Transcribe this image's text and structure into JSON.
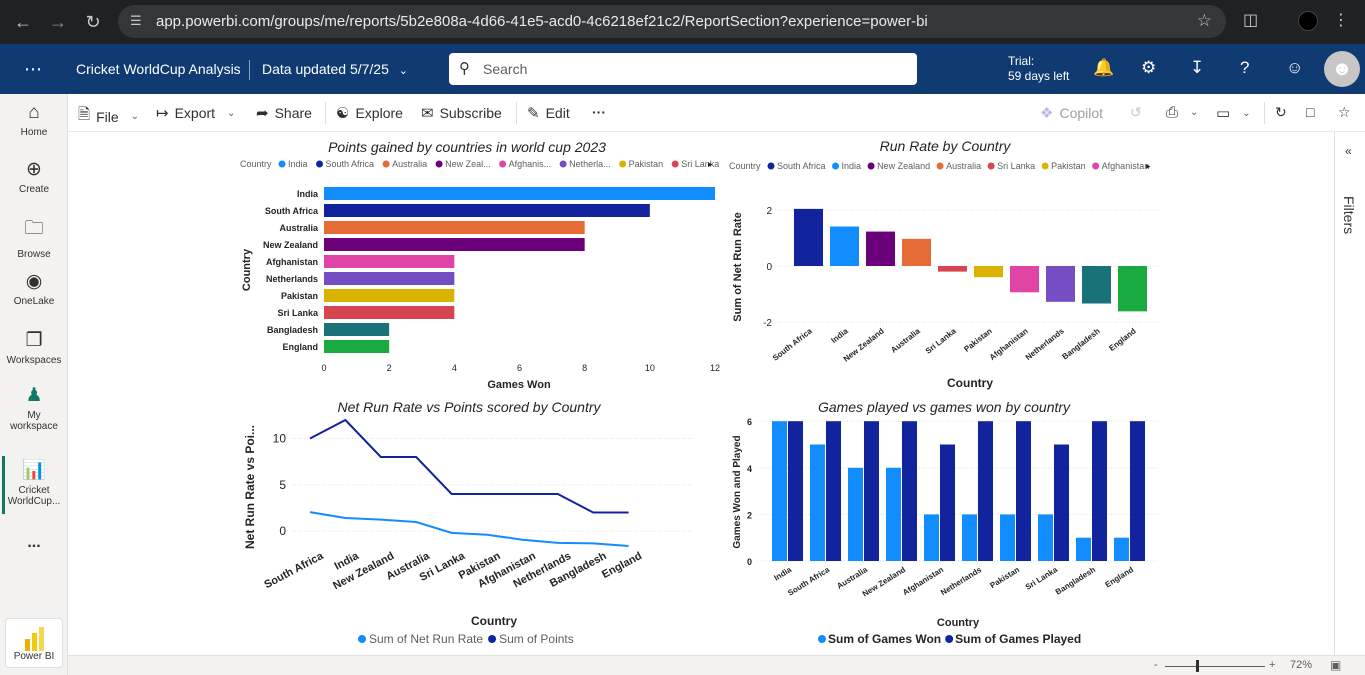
{
  "browser": {
    "url": "app.powerbi.com/groups/me/reports/5b2e808a-4d66-41e5-acd0-4c6218ef21c2/ReportSection?experience=power-bi"
  },
  "header": {
    "report_title": "Cricket WorldCup Analysis",
    "data_updated": "Data updated 5/7/25",
    "search_placeholder": "Search",
    "trial_line1": "Trial:",
    "trial_line2": "59 days left"
  },
  "rail": {
    "home": "Home",
    "create": "Create",
    "browse": "Browse",
    "onelake": "OneLake",
    "workspaces": "Workspaces",
    "my_workspace_1": "My",
    "my_workspace_2": "workspace",
    "cricket_1": "Cricket",
    "cricket_2": "WorldCup...",
    "more": "...",
    "powerbi": "Power BI"
  },
  "toolbar": {
    "file": "File",
    "export": "Export",
    "share": "Share",
    "explore": "Explore",
    "subscribe": "Subscribe",
    "edit": "Edit",
    "copilot": "Copilot"
  },
  "filters_label": "Filters",
  "status": {
    "zoom": "72%",
    "minus": "-",
    "plus": "+"
  },
  "colors": {
    "India": "#118dff",
    "South Africa": "#12239e",
    "Australia": "#e66c37",
    "New Zealand": "#6b007b",
    "Afghanistan": "#e044a7",
    "Netherlands": "#744ec2",
    "Pakistan": "#d9b300",
    "Sri Lanka": "#d64550",
    "Bangladesh": "#197278",
    "England": "#1aab40"
  },
  "chart_data": [
    {
      "type": "bar",
      "orientation": "horizontal",
      "title": "Points gained by countries in world cup 2023",
      "legend_title": "Country",
      "legend": [
        "India",
        "South Africa",
        "Australia",
        "New Zeal...",
        "Afghanis...",
        "Netherla...",
        "Pakistan",
        "Sri Lanka"
      ],
      "categories": [
        "India",
        "South Africa",
        "Australia",
        "New Zealand",
        "Afghanistan",
        "Netherlands",
        "Pakistan",
        "Sri Lanka",
        "Bangladesh",
        "England"
      ],
      "values": [
        12,
        10,
        8,
        8,
        4,
        4,
        4,
        4,
        2,
        2
      ],
      "xlabel": "Games Won",
      "ylabel": "Country",
      "xticks": [
        "0",
        "2",
        "4",
        "6",
        "8",
        "10",
        "12"
      ],
      "xlim": [
        0,
        12
      ]
    },
    {
      "type": "bar",
      "title": "Run Rate by Country",
      "legend_title": "Country",
      "legend": [
        "South Africa",
        "India",
        "New Zealand",
        "Australia",
        "Sri Lanka",
        "Pakistan",
        "Afghanistan"
      ],
      "categories": [
        "South Africa",
        "India",
        "New Zealand",
        "Australia",
        "Sri Lanka",
        "Pakistan",
        "Afghanistan",
        "Netherlands",
        "Bangladesh",
        "England"
      ],
      "values": [
        2.04,
        1.41,
        1.23,
        0.97,
        -0.2,
        -0.4,
        -0.94,
        -1.28,
        -1.34,
        -1.62
      ],
      "xlabel": "Country",
      "ylabel": "Sum of Net Run Rate",
      "yticks": [
        "2",
        "0",
        "-2"
      ],
      "ylim": [
        -2,
        2
      ]
    },
    {
      "type": "line",
      "title": "Net Run Rate vs Points scored by Country",
      "categories": [
        "South Africa",
        "India",
        "New Zealand",
        "Australia",
        "Sri Lanka",
        "Pakistan",
        "Afghanistan",
        "Netherlands",
        "Bangladesh",
        "England"
      ],
      "series": [
        {
          "name": "Sum of Net Run Rate",
          "values": [
            2.04,
            1.41,
            1.23,
            0.97,
            -0.2,
            -0.4,
            -0.94,
            -1.28,
            -1.34,
            -1.62
          ]
        },
        {
          "name": "Sum of Points",
          "values": [
            10,
            12,
            8,
            8,
            4,
            4,
            4,
            4,
            2,
            2
          ]
        }
      ],
      "xlabel": "Country",
      "ylabel": "Net Run Rate vs Poi...",
      "yticks": [
        "10",
        "5",
        "0"
      ],
      "ylim": [
        -2,
        12
      ]
    },
    {
      "type": "bar",
      "title": "Games played vs games won by country",
      "categories": [
        "India",
        "South Africa",
        "Australia",
        "New Zealand",
        "Afghanistan",
        "Netherlands",
        "Pakistan",
        "Sri Lanka",
        "Bangladesh",
        "England"
      ],
      "series": [
        {
          "name": "Sum of Games Won",
          "values": [
            6,
            5,
            4,
            4,
            2,
            2,
            2,
            2,
            1,
            1
          ]
        },
        {
          "name": "Sum of Games Played",
          "values": [
            6,
            6,
            6,
            6,
            5,
            6,
            6,
            5,
            6,
            6
          ]
        }
      ],
      "xlabel": "Country",
      "ylabel": "Games Won and Played",
      "yticks": [
        "6",
        "4",
        "2",
        "0"
      ],
      "ylim": [
        0,
        6
      ]
    }
  ]
}
